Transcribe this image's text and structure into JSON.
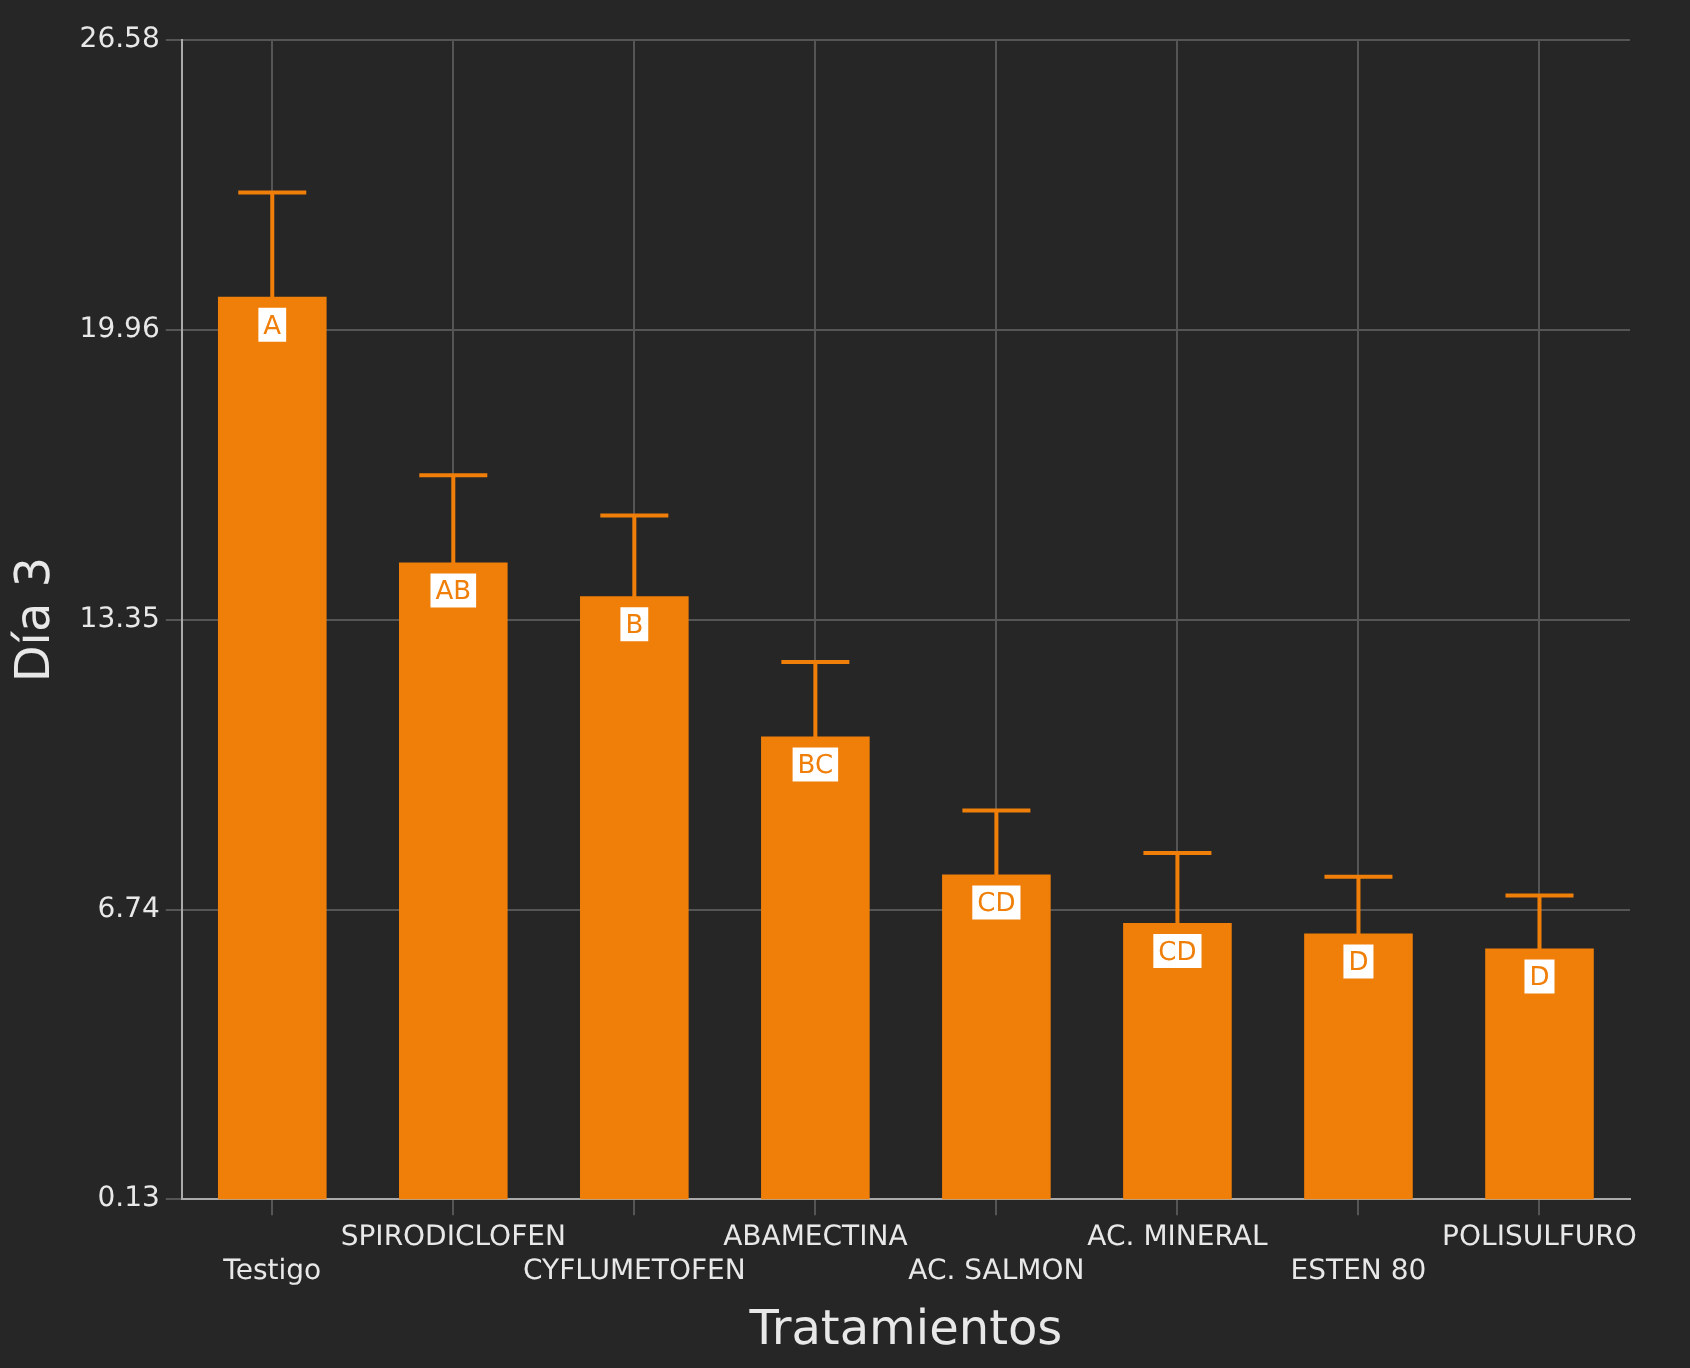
{
  "chart_data": {
    "type": "bar",
    "xlabel": "Tratamientos",
    "ylabel": "Día 3",
    "categories": [
      "Testigo",
      "SPIRODICLOFEN",
      "CYFLUMETOFEN",
      "ABAMECTINA",
      "AC. SALMON",
      "AC. MINERAL",
      "ESTEN 80",
      "POLISULFURO"
    ],
    "values": [
      20.72,
      14.66,
      13.89,
      10.69,
      7.54,
      6.43,
      6.19,
      5.85
    ],
    "errors": [
      2.38,
      1.99,
      1.84,
      1.7,
      1.46,
      1.6,
      1.3,
      1.21
    ],
    "color": "#f07f09",
    "ylim": [
      0.13,
      26.58
    ],
    "yticks": [
      0.13,
      6.74,
      13.35,
      19.96,
      26.58
    ],
    "grid": true,
    "annotations": [
      {
        "text": "A",
        "x": "Testigo",
        "y": 20.72
      },
      {
        "text": "AB",
        "x": "SPIRODICLOFEN",
        "y": 14.66
      },
      {
        "text": "B",
        "x": "CYFLUMETOFEN",
        "y": 13.89
      },
      {
        "text": "BC",
        "x": "ABAMECTINA",
        "y": 10.69
      },
      {
        "text": "CD",
        "x": "AC. SALMON",
        "y": 7.54
      },
      {
        "text": "CD",
        "x": "AC. MINERAL",
        "y": 6.43
      },
      {
        "text": "D",
        "x": "ESTEN 80",
        "y": 6.19
      },
      {
        "text": "D",
        "x": "POLISULFURO",
        "y": 5.85
      }
    ]
  }
}
